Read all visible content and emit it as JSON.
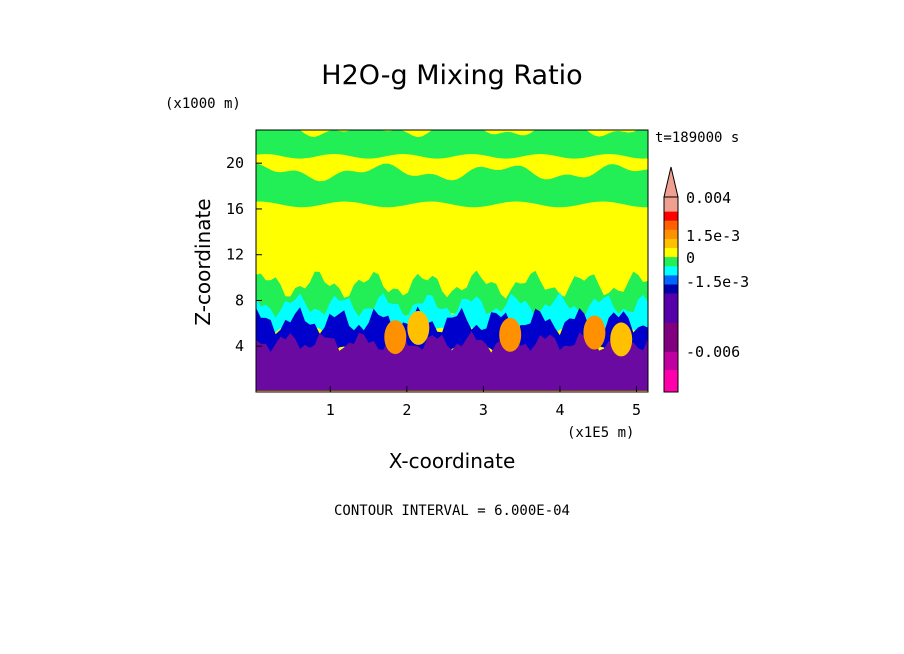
{
  "chart_data": {
    "type": "heatmap",
    "title": "H2O-g Mixing Ratio",
    "xlabel": "X-coordinate",
    "ylabel": "Z-coordinate",
    "x_unit": "(x1E5 m)",
    "y_unit": "(x1000 m)",
    "time_label": "t=189000 s",
    "contour_interval_label": "CONTOUR INTERVAL = 6.000E-04",
    "xlim": [
      0.03,
      5.15
    ],
    "ylim": [
      0,
      22.9
    ],
    "x_ticks": [
      1,
      2,
      3,
      4,
      5
    ],
    "x_tick_labels": [
      "1",
      "2",
      "3",
      "4",
      "5"
    ],
    "y_ticks": [
      4,
      8,
      12,
      16,
      20
    ],
    "y_tick_labels": [
      "4",
      "8",
      "12",
      "16",
      "20"
    ],
    "colorbar_labels": [
      {
        "value": 0.004,
        "text": "0.004"
      },
      {
        "value": 0.0015,
        "text": "1.5e-3"
      },
      {
        "value": 0,
        "text": "0"
      },
      {
        "value": -0.0015,
        "text": "-1.5e-3"
      },
      {
        "value": -0.006,
        "text": "-0.006"
      }
    ],
    "colorbar_levels": [
      {
        "color": "#f0a090",
        "span": 1.6
      },
      {
        "color": "#ff0000",
        "span": 1
      },
      {
        "color": "#ff6000",
        "span": 1
      },
      {
        "color": "#ff9000",
        "span": 1
      },
      {
        "color": "#ffc000",
        "span": 1
      },
      {
        "color": "#ffff00",
        "span": 1
      },
      {
        "color": "#22ee55",
        "span": 1
      },
      {
        "color": "#00ffff",
        "span": 1
      },
      {
        "color": "#0066ff",
        "span": 1
      },
      {
        "color": "#0000aa",
        "span": 1
      },
      {
        "color": "#5500aa",
        "span": 3.2
      },
      {
        "color": "#800080",
        "span": 3.2
      },
      {
        "color": "#c000a0",
        "span": 2
      },
      {
        "color": "#ff00aa",
        "span": 2.4
      }
    ],
    "colorbar_arrow_color": "#f0a090",
    "field_layers_description_note": "",
    "regions": [
      {
        "level": "yellow",
        "color": "#ffff00",
        "x": [
          0.03,
          5.15
        ],
        "z": [
          0,
          22.9
        ]
      },
      {
        "level": "green_top",
        "color": "#22ee55",
        "x": [
          0.03,
          5.15
        ],
        "z": [
          20.6,
          22.9
        ]
      },
      {
        "level": "green_upper",
        "color": "#22ee55",
        "x": [
          0.03,
          5.15
        ],
        "z": [
          16.4,
          19.2
        ]
      },
      {
        "level": "green_mid",
        "color": "#22ee55",
        "x": [
          0.03,
          5.15
        ],
        "z": [
          6.5,
          9.4
        ]
      },
      {
        "level": "cyan",
        "color": "#00ffff",
        "x": [
          0.03,
          5.15
        ],
        "z": [
          5.3,
          7.6
        ]
      },
      {
        "level": "blue",
        "color": "#0000cc",
        "x": [
          0.03,
          5.15
        ],
        "z": [
          3.6,
          6.2
        ]
      },
      {
        "level": "purple",
        "color": "#6a0aa0",
        "x": [
          0.03,
          5.15
        ],
        "z": [
          0.1,
          4.4
        ]
      }
    ],
    "warm_cores": [
      {
        "x": 1.85,
        "z": 4.8,
        "color": "#ff9000"
      },
      {
        "x": 2.15,
        "z": 5.6,
        "color": "#ffc000"
      },
      {
        "x": 3.35,
        "z": 5.0,
        "color": "#ff9000"
      },
      {
        "x": 4.45,
        "z": 5.2,
        "color": "#ff9000"
      },
      {
        "x": 4.8,
        "z": 4.6,
        "color": "#ffc000"
      }
    ]
  }
}
